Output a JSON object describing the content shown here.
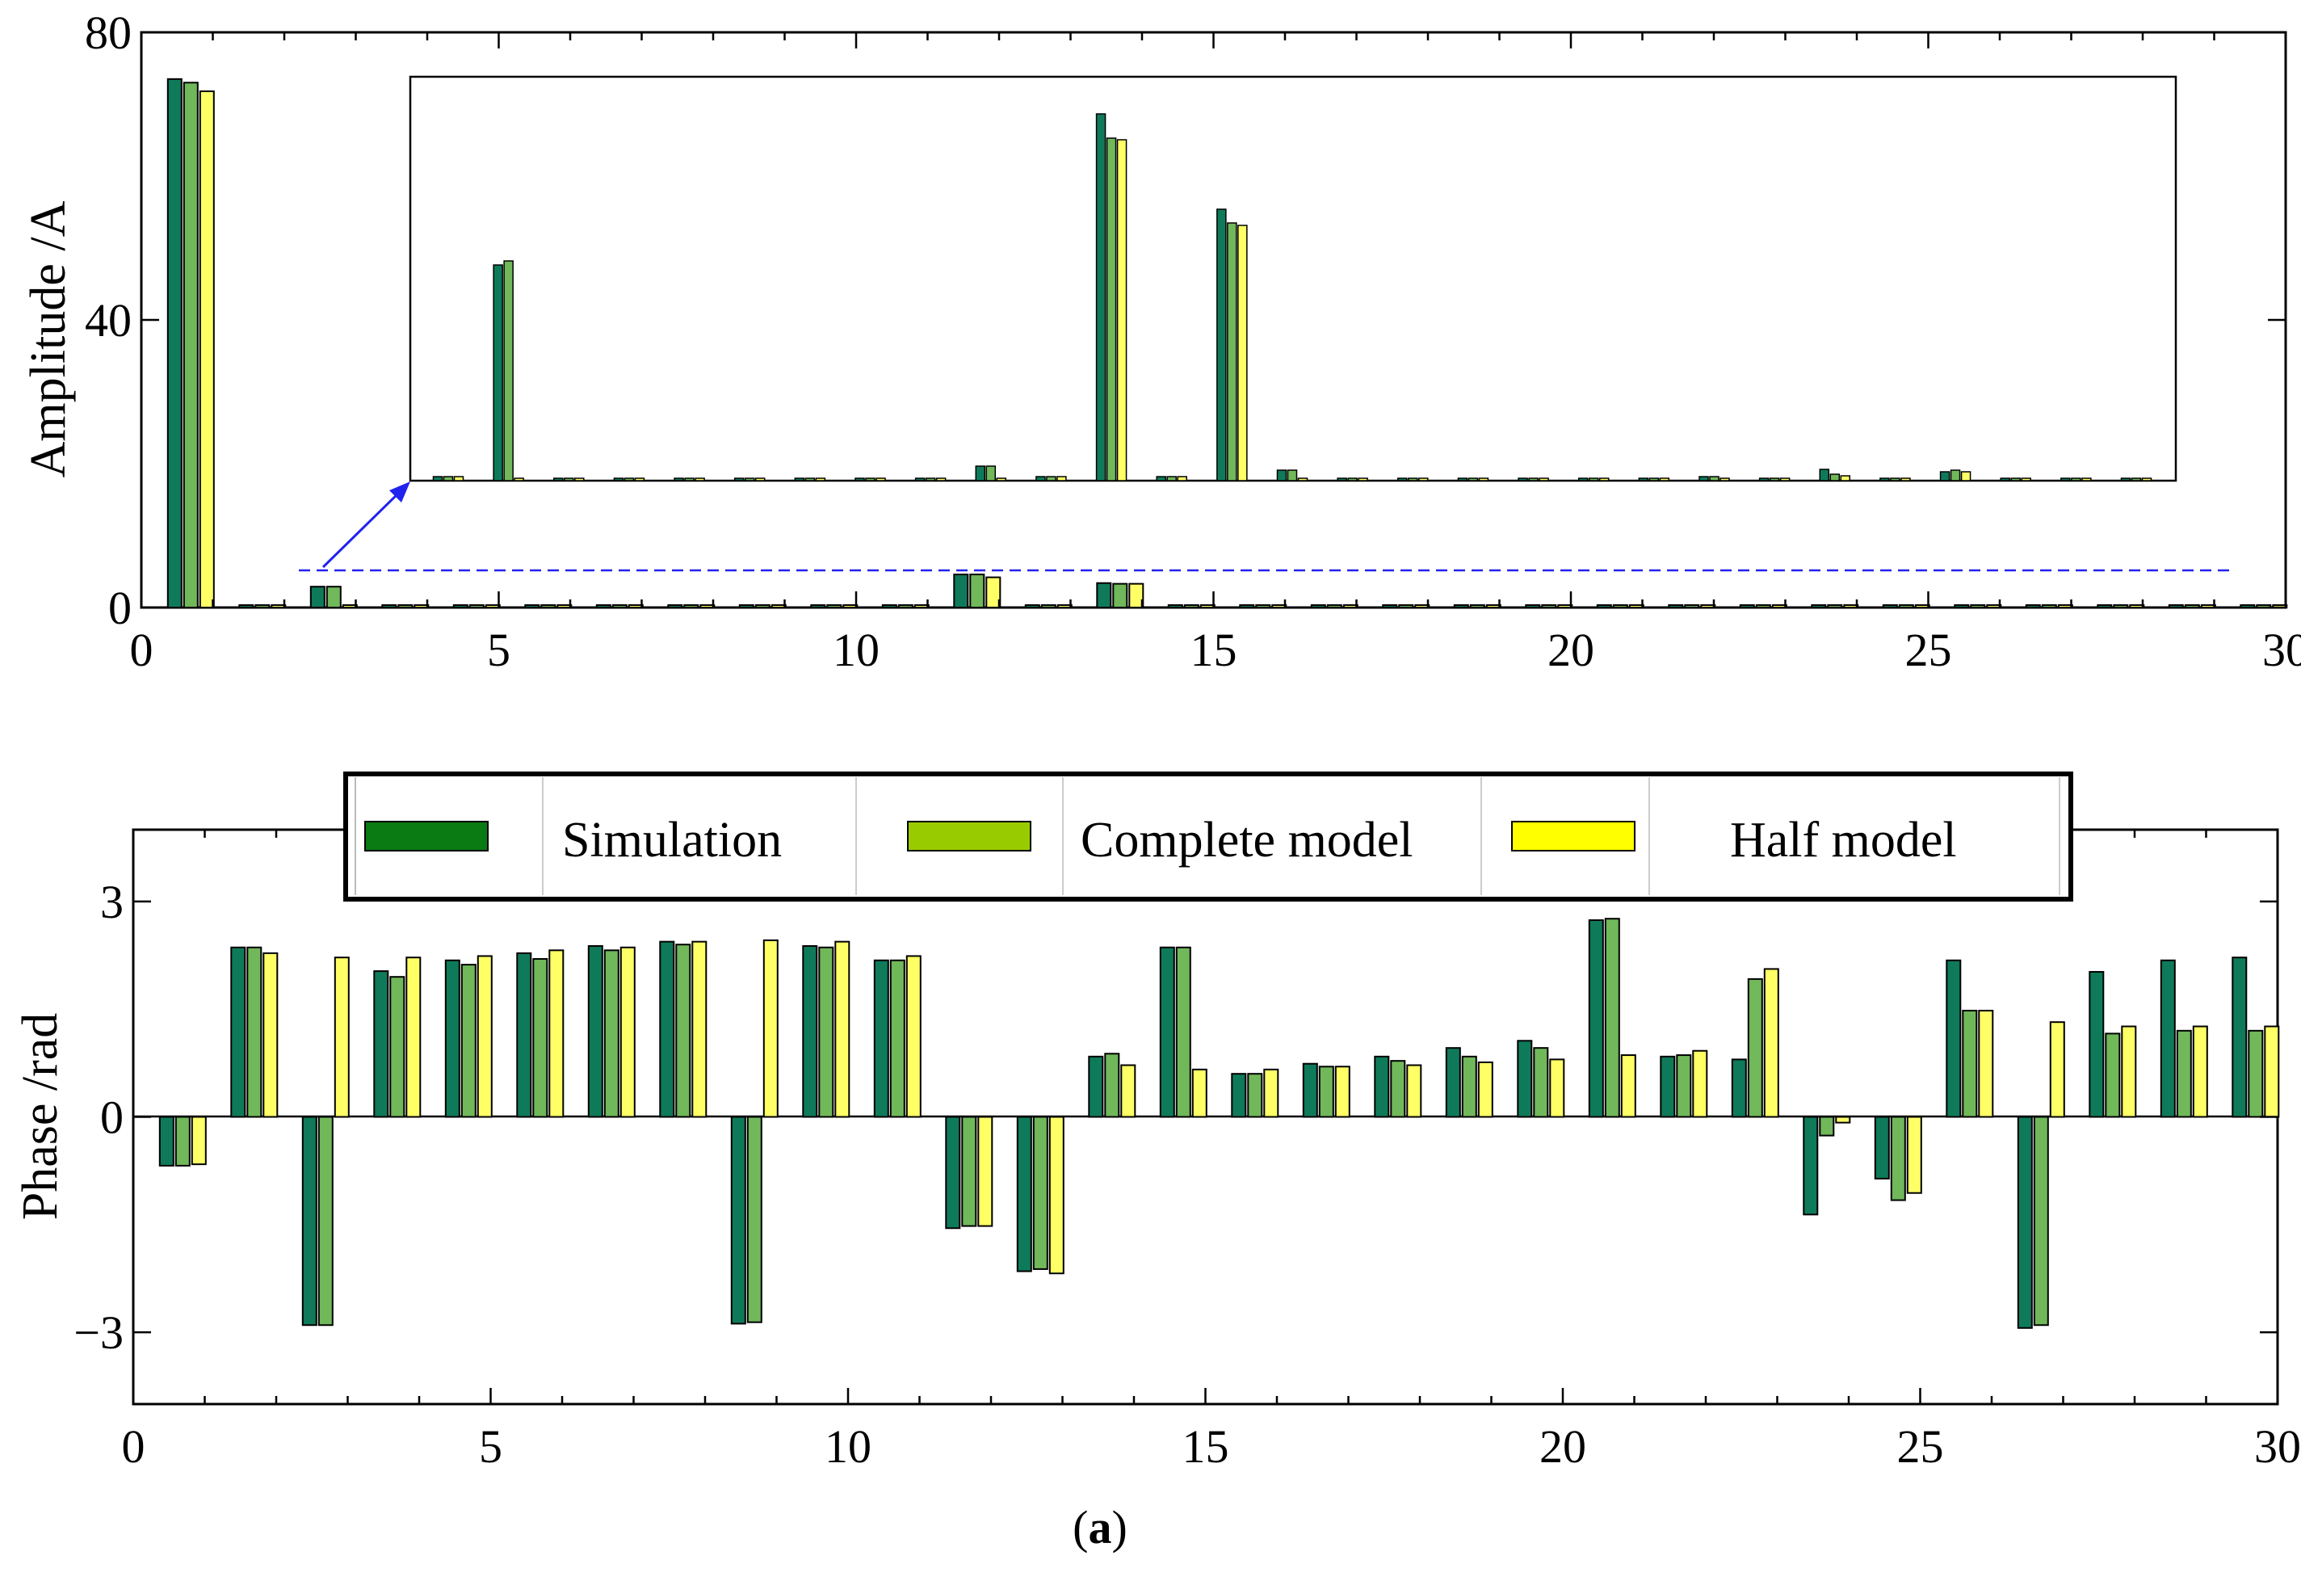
{
  "colors": {
    "simulation": "#0e7a5a",
    "complete": "#70b85a",
    "half": "#ffff66",
    "legend_simulation": "#0a7a12",
    "legend_complete": "#99cc00",
    "legend_half": "#ffff00",
    "dashed": "#2222ee"
  },
  "caption": {
    "open": "(",
    "letter": "a",
    "close": ")"
  },
  "legend": {
    "simulation": "Simulation",
    "complete": "Complete model",
    "half": "Half model"
  },
  "chart_data": [
    {
      "type": "bar",
      "title": "",
      "xlabel": "",
      "ylabel": "Amplitude /A",
      "xlim": [
        0,
        30
      ],
      "ylim": [
        0,
        80
      ],
      "xticks": [
        "0",
        "5",
        "10",
        "15",
        "20",
        "25",
        "30"
      ],
      "yticks": [
        "0",
        "40",
        "80"
      ],
      "categories": [
        1,
        2,
        3,
        4,
        5,
        6,
        7,
        8,
        9,
        10,
        11,
        12,
        13,
        14,
        15,
        16,
        17,
        18,
        19,
        20,
        21,
        22,
        23,
        24,
        25,
        26,
        27,
        28,
        29,
        30
      ],
      "series": [
        {
          "name": "Simulation",
          "values": [
            73.5,
            0.1,
            2.9,
            0.1,
            0.1,
            0.1,
            0.1,
            0.1,
            0.1,
            0.1,
            0.1,
            4.6,
            0.1,
            3.4,
            0.1,
            0.1,
            0.1,
            0.1,
            0.1,
            0.1,
            0.1,
            0.1,
            0.1,
            0.1,
            0.1,
            0.1,
            0.1,
            0.1,
            0.1,
            0.1
          ]
        },
        {
          "name": "Complete model",
          "values": [
            73.0,
            0.1,
            2.9,
            0.1,
            0.1,
            0.1,
            0.1,
            0.1,
            0.1,
            0.1,
            0.1,
            4.6,
            0.1,
            3.3,
            0.1,
            0.1,
            0.1,
            0.1,
            0.1,
            0.1,
            0.1,
            0.1,
            0.1,
            0.1,
            0.1,
            0.1,
            0.1,
            0.1,
            0.1,
            0.1
          ]
        },
        {
          "name": "Half model",
          "values": [
            71.8,
            0.1,
            0.2,
            0.1,
            0.1,
            0.1,
            0.1,
            0.1,
            0.1,
            0.1,
            0.1,
            4.2,
            0.1,
            3.3,
            0.1,
            0.1,
            0.1,
            0.1,
            0.1,
            0.1,
            0.1,
            0.1,
            0.1,
            0.1,
            0.1,
            0.1,
            0.1,
            0.1,
            0.1,
            0.1
          ]
        }
      ],
      "zoom_level": 5,
      "inset": {
        "categories": [
          2,
          3,
          4,
          5,
          6,
          7,
          8,
          9,
          10,
          11,
          12,
          13,
          14,
          15,
          16,
          17,
          18,
          19,
          20,
          21,
          22,
          23,
          24,
          25,
          26,
          27,
          28,
          29,
          30
        ],
        "ylim": [
          0,
          5
        ],
        "series": [
          {
            "name": "Simulation",
            "values": [
              0.05,
              2.67,
              0.02,
              0.02,
              0.02,
              0.02,
              0.02,
              0.02,
              0.02,
              0.18,
              0.05,
              4.54,
              0.05,
              3.36,
              0.13,
              0.02,
              0.01,
              0.01,
              0.01,
              0.01,
              0.01,
              0.05,
              0.01,
              0.14,
              0.01,
              0.11,
              0.01,
              0.02,
              0.01
            ]
          },
          {
            "name": "Complete model",
            "values": [
              0.05,
              2.72,
              0.02,
              0.02,
              0.02,
              0.02,
              0.02,
              0.02,
              0.02,
              0.18,
              0.05,
              4.24,
              0.05,
              3.19,
              0.13,
              0.02,
              0.01,
              0.01,
              0.01,
              0.01,
              0.01,
              0.05,
              0.01,
              0.08,
              0.01,
              0.13,
              0.01,
              0.02,
              0.01
            ]
          },
          {
            "name": "Half model",
            "values": [
              0.05,
              0.03,
              0.02,
              0.02,
              0.02,
              0.02,
              0.02,
              0.02,
              0.02,
              0.02,
              0.05,
              4.22,
              0.05,
              3.16,
              0.02,
              0.02,
              0.01,
              0.01,
              0.01,
              0.01,
              0.01,
              0.02,
              0.01,
              0.06,
              0.01,
              0.11,
              0.01,
              0.02,
              0.01
            ]
          }
        ]
      }
    },
    {
      "type": "bar",
      "title": "",
      "xlabel": "",
      "ylabel": "Phase /rad",
      "xlim": [
        0,
        30
      ],
      "ylim": [
        -4,
        4
      ],
      "xticks": [
        "0",
        "5",
        "10",
        "15",
        "20",
        "25",
        "30"
      ],
      "yticks": [
        "-3",
        "0",
        "3"
      ],
      "legend_position": "top",
      "categories": [
        1,
        2,
        3,
        4,
        5,
        6,
        7,
        8,
        9,
        10,
        11,
        12,
        13,
        14,
        15,
        16,
        17,
        18,
        19,
        20,
        21,
        22,
        23,
        24,
        25,
        26,
        27,
        28,
        29,
        30
      ],
      "series": [
        {
          "name": "Simulation",
          "values": [
            -0.68,
            2.36,
            -2.9,
            2.03,
            2.18,
            2.28,
            2.38,
            2.44,
            -2.88,
            2.38,
            2.18,
            -1.55,
            -2.15,
            0.84,
            2.36,
            0.6,
            0.74,
            0.84,
            0.96,
            1.06,
            2.74,
            0.84,
            0.8,
            -1.36,
            -0.86,
            2.18,
            -2.94,
            2.02,
            2.18,
            2.22
          ]
        },
        {
          "name": "Complete model",
          "values": [
            -0.68,
            2.36,
            -2.9,
            1.95,
            2.12,
            2.2,
            2.32,
            2.4,
            -2.86,
            2.36,
            2.18,
            -1.52,
            -2.12,
            0.88,
            2.36,
            0.6,
            0.7,
            0.78,
            0.84,
            0.96,
            2.76,
            0.86,
            1.92,
            -0.26,
            -1.16,
            1.48,
            -2.9,
            1.16,
            1.2,
            1.2
          ]
        },
        {
          "name": "Half model",
          "values": [
            -0.66,
            2.28,
            2.22,
            2.22,
            2.24,
            2.32,
            2.36,
            2.44,
            2.46,
            2.44,
            2.24,
            -1.52,
            -2.18,
            0.72,
            0.66,
            0.66,
            0.7,
            0.72,
            0.76,
            0.8,
            0.86,
            0.92,
            2.06,
            -0.08,
            -1.06,
            1.48,
            1.32,
            1.26,
            1.26,
            1.26
          ]
        }
      ]
    }
  ]
}
